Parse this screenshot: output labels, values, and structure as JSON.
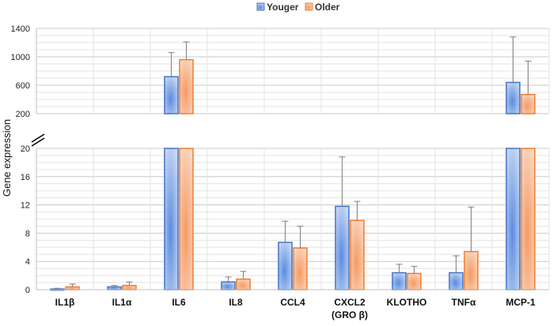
{
  "chart_data": {
    "type": "bar",
    "title": "",
    "xlabel": "",
    "ylabel": "Gene expression",
    "legend_position": "top-center",
    "grid": true,
    "axis_break": true,
    "upper_panel": {
      "ylim": [
        200,
        1400
      ],
      "ticks": [
        "1400",
        "1000",
        "600",
        "200"
      ]
    },
    "lower_panel": {
      "ylim": [
        0,
        20
      ],
      "ticks": [
        "20",
        "16",
        "12",
        "8",
        "4",
        "0"
      ]
    },
    "categories": [
      [
        "IL1β"
      ],
      [
        "IL1α"
      ],
      [
        "IL6"
      ],
      [
        "IL8"
      ],
      [
        "CCL4"
      ],
      [
        "CXCL2",
        "(GRO β)"
      ],
      [
        "KLOTHO"
      ],
      [
        "TNFα"
      ],
      [
        "MCP-1"
      ]
    ],
    "series": [
      {
        "name": "Youger",
        "color": "#4472c4",
        "fill_light": "#e2ebf8",
        "fill_dark": "#5b8be0",
        "values": [
          0.1,
          0.4,
          720,
          1.1,
          6.7,
          11.8,
          2.4,
          2.4,
          640
        ],
        "errors": [
          0.1,
          0.2,
          340,
          0.7,
          3.0,
          7.0,
          1.2,
          2.4,
          640
        ]
      },
      {
        "name": "Older",
        "color": "#ed7d31",
        "fill_light": "#fbe6d8",
        "fill_dark": "#f59a62",
        "values": [
          0.4,
          0.6,
          960,
          1.5,
          5.9,
          9.8,
          2.3,
          5.4,
          470
        ],
        "errors": [
          0.4,
          0.5,
          250,
          1.1,
          3.1,
          2.7,
          1.0,
          6.3,
          470
        ]
      }
    ]
  }
}
